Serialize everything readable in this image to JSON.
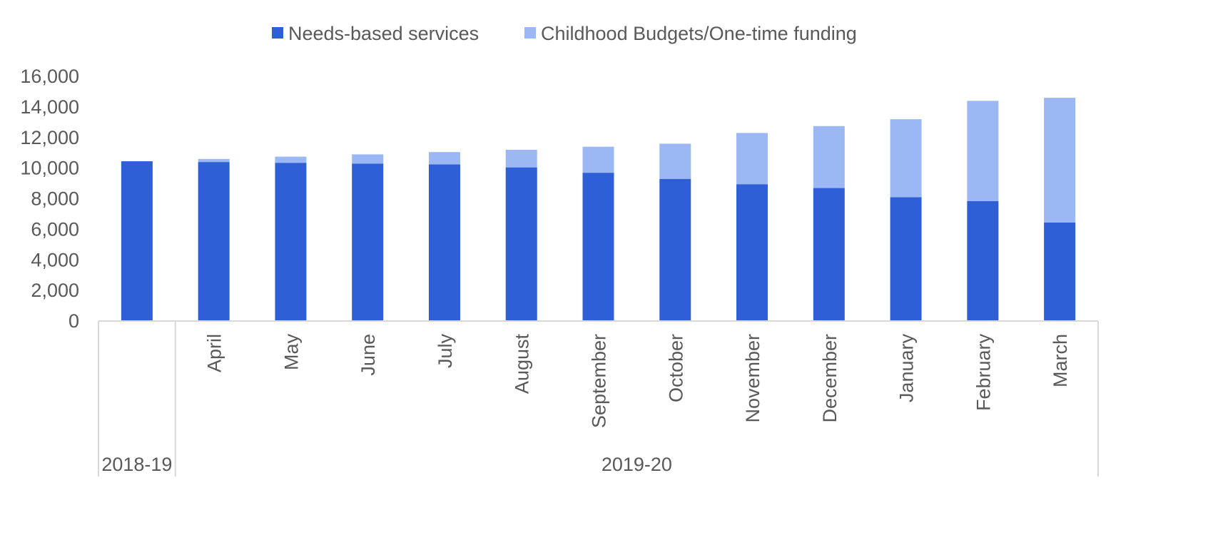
{
  "chart_data": {
    "type": "bar",
    "stacked": true,
    "title": "",
    "xlabel": "",
    "ylabel": "",
    "ylim": [
      0,
      16000
    ],
    "yticks": [
      "0",
      "2,000",
      "4,000",
      "6,000",
      "8,000",
      "10,000",
      "12,000",
      "14,000",
      "16,000"
    ],
    "grid": false,
    "legend_position": "top-center",
    "categories": [
      "",
      "April",
      "May",
      "June",
      "July",
      "August",
      "September",
      "October",
      "November",
      "December",
      "January",
      "February",
      "March"
    ],
    "groups": [
      {
        "label": "2018-19",
        "count": 1
      },
      {
        "label": "2019-20",
        "count": 12
      }
    ],
    "series": [
      {
        "name": "Needs-based services",
        "color": "#2e5fd6",
        "values": [
          10400,
          10350,
          10300,
          10250,
          10200,
          10000,
          9650,
          9250,
          8900,
          8650,
          8050,
          7800,
          6400
        ]
      },
      {
        "name": "Childhood Budgets/One-time funding",
        "color": "#9bb8f5",
        "values": [
          0,
          200,
          400,
          600,
          800,
          1150,
          1700,
          2300,
          3350,
          4050,
          5100,
          6550,
          8150
        ]
      }
    ]
  }
}
